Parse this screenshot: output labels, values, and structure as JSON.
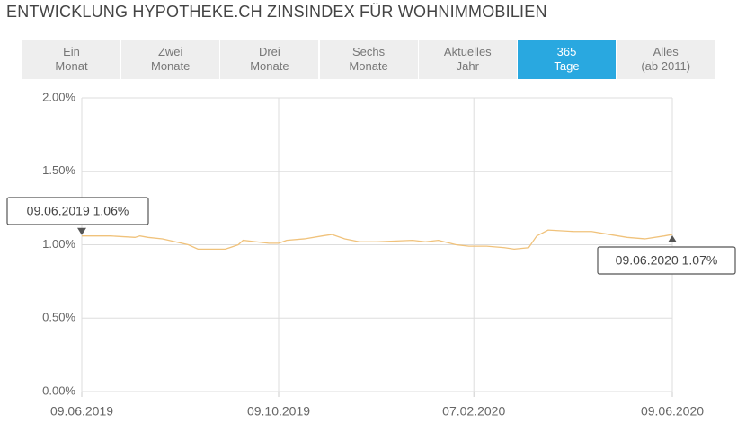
{
  "chart_data": {
    "type": "line",
    "title": "ENTWICKLUNG HYPOTHEKE.CH ZINSINDEX FÜR WOHNIMMOBILIEN",
    "tabs": [
      {
        "lines": [
          "Ein",
          "Monat"
        ]
      },
      {
        "lines": [
          "Zwei",
          "Monate"
        ]
      },
      {
        "lines": [
          "Drei",
          "Monate"
        ]
      },
      {
        "lines": [
          "Sechs",
          "Monate"
        ]
      },
      {
        "lines": [
          "Aktuelles",
          "Jahr"
        ]
      },
      {
        "lines": [
          "365",
          "Tage"
        ],
        "active": true
      },
      {
        "lines": [
          "Alles",
          "(ab 2011)"
        ]
      }
    ],
    "x": [
      "2019-06-09",
      "2019-06-27",
      "2019-07-12",
      "2019-07-15",
      "2019-07-20",
      "2019-07-29",
      "2019-08-06",
      "2019-08-14",
      "2019-08-20",
      "2019-09-06",
      "2019-09-14",
      "2019-09-17",
      "2019-09-25",
      "2019-10-03",
      "2019-10-09",
      "2019-10-14",
      "2019-10-25",
      "2019-11-05",
      "2019-11-11",
      "2019-11-19",
      "2019-11-28",
      "2019-12-09",
      "2019-12-31",
      "2020-01-08",
      "2020-01-16",
      "2020-01-27",
      "2020-02-04",
      "2020-02-15",
      "2020-02-26",
      "2020-03-03",
      "2020-03-12",
      "2020-03-17",
      "2020-03-24",
      "2020-04-09",
      "2020-04-20",
      "2020-05-01",
      "2020-05-12",
      "2020-05-23",
      "2020-06-04",
      "2020-06-09"
    ],
    "series": [
      {
        "color": "#f0c27b",
        "values": [
          1.06,
          1.06,
          1.05,
          1.06,
          1.05,
          1.04,
          1.02,
          1.0,
          0.97,
          0.97,
          1.0,
          1.03,
          1.02,
          1.01,
          1.01,
          1.03,
          1.04,
          1.06,
          1.07,
          1.04,
          1.02,
          1.02,
          1.03,
          1.02,
          1.03,
          1.0,
          0.99,
          0.99,
          0.98,
          0.97,
          0.98,
          1.06,
          1.1,
          1.09,
          1.09,
          1.07,
          1.05,
          1.04,
          1.06,
          1.07
        ]
      }
    ],
    "xlim": [
      "2019-06-09",
      "2020-06-09"
    ],
    "xticks": [
      {
        "value": "2019-06-09",
        "label": "09.06.2019"
      },
      {
        "value": "2019-10-09",
        "label": "09.10.2019"
      },
      {
        "value": "2020-02-07",
        "label": "07.02.2020"
      },
      {
        "value": "2020-06-09",
        "label": "09.06.2020"
      }
    ],
    "ylim": [
      0,
      2
    ],
    "yticks": [
      {
        "value": 0,
        "label": "0.00%"
      },
      {
        "value": 0.5,
        "label": "0.50%"
      },
      {
        "value": 1,
        "label": "1.00%"
      },
      {
        "value": 1.5,
        "label": "1.50%"
      },
      {
        "value": 2,
        "label": "2.00%"
      }
    ],
    "grid": true,
    "annotations": [
      "09.06.2019 1.06%",
      "09.06.2020 1.07%"
    ]
  }
}
